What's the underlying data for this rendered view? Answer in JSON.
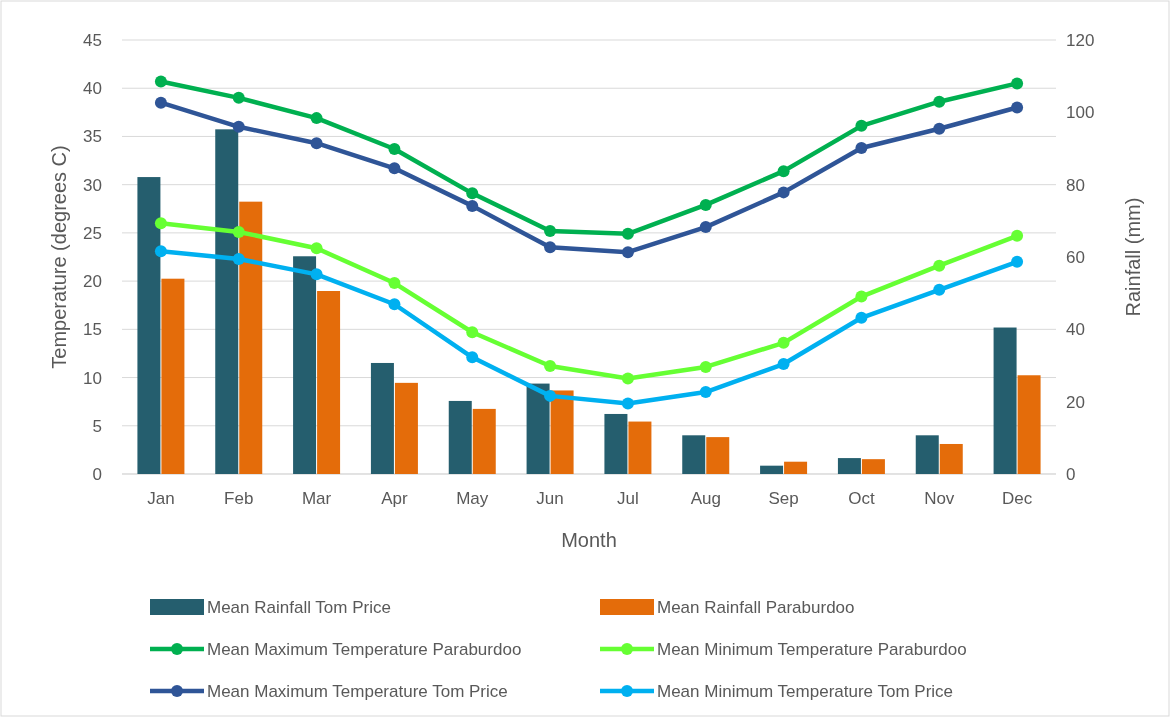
{
  "chart_data": {
    "type": "bar",
    "xlabel": "Month",
    "ylabel": "Temperature (degrees C)",
    "y2label": "Rainfall (mm)",
    "categories": [
      "Jan",
      "Feb",
      "Mar",
      "Apr",
      "May",
      "Jun",
      "Jul",
      "Aug",
      "Sep",
      "Oct",
      "Nov",
      "Dec"
    ],
    "series": [
      {
        "name": "Mean Rainfall Tom Price",
        "axis": "y2",
        "color": "#255e6e",
        "values": [
          82.1,
          95.3,
          60.2,
          30.7,
          20.2,
          25.0,
          16.6,
          10.7,
          2.3,
          4.4,
          10.7,
          40.5
        ]
      },
      {
        "name": "Mean Rainfall Paraburdoo",
        "axis": "y2",
        "color": "#e46c0a",
        "values": [
          54.0,
          75.3,
          50.6,
          25.2,
          18.0,
          23.1,
          14.5,
          10.2,
          3.4,
          4.1,
          8.3,
          27.3
        ]
      },
      {
        "name": "Mean Maximum Temperature Paraburdoo",
        "type": "line",
        "color": "#00b050",
        "values": [
          40.7,
          39.0,
          36.9,
          33.7,
          29.1,
          25.2,
          24.9,
          27.9,
          31.4,
          36.1,
          38.6,
          40.5
        ]
      },
      {
        "name": "Mean Minimum Temperature Paraburdoo",
        "type": "line",
        "color": "#66ff33",
        "values": [
          26.0,
          25.1,
          23.4,
          19.8,
          14.7,
          11.2,
          9.9,
          11.1,
          13.6,
          18.4,
          21.6,
          24.7
        ]
      },
      {
        "name": "Mean Maximum Temperature Tom Price",
        "type": "line",
        "color": "#2f5597",
        "values": [
          38.5,
          36.0,
          34.3,
          31.7,
          27.8,
          23.5,
          23.0,
          25.6,
          29.2,
          33.8,
          35.8,
          38.0
        ]
      },
      {
        "name": "Mean Minimum Temperature Tom Price",
        "type": "line",
        "color": "#00b0f0",
        "values": [
          23.1,
          22.3,
          20.7,
          17.6,
          12.1,
          8.1,
          7.3,
          8.5,
          11.4,
          16.2,
          19.1,
          22.0
        ]
      }
    ],
    "ylim": [
      0,
      45
    ],
    "yticks": [
      0,
      5,
      10,
      15,
      20,
      25,
      30,
      35,
      40,
      45
    ],
    "y2lim": [
      0,
      120
    ],
    "y2ticks": [
      0,
      20,
      40,
      60,
      80,
      100,
      120
    ],
    "grid": "y",
    "legend": "bottom",
    "marker": "circle",
    "line_style": "solid"
  }
}
